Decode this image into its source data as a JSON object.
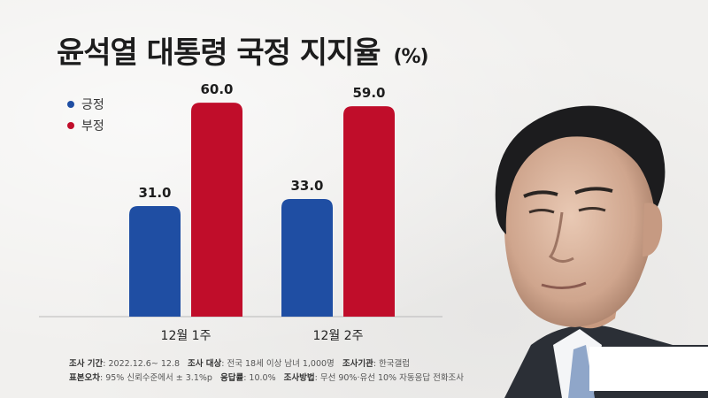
{
  "title": "윤석열 대통령 국정 지지율",
  "title_unit": "(%)",
  "colors": {
    "positive": "#1f4ea3",
    "negative": "#c00d2a"
  },
  "chart_data": {
    "type": "bar",
    "categories": [
      "12월 1주",
      "12월 2주"
    ],
    "series": [
      {
        "name": "긍정",
        "values": [
          31.0,
          33.0
        ]
      },
      {
        "name": "부정",
        "values": [
          60.0,
          59.0
        ]
      }
    ],
    "value_labels": [
      [
        "31.0",
        "33.0"
      ],
      [
        "60.0",
        "59.0"
      ]
    ],
    "ylim": [
      0,
      64
    ],
    "grid": false,
    "legend": "top-left"
  },
  "footer": {
    "line1": [
      {
        "label": "조사 기간",
        "value": ": 2022.12.6~ 12.8"
      },
      {
        "label": "조사 대상",
        "value": ": 전국 18세 이상 남녀 1,000명"
      },
      {
        "label": "조사기관",
        "value": ": 한국갤럽"
      }
    ],
    "line2": [
      {
        "label": "표본오차",
        "value": ": 95% 신뢰수준에서 ± 3.1%p"
      },
      {
        "label": "응답률",
        "value": ": 10.0%"
      },
      {
        "label": "조사방법",
        "value": ": 무선 90%·유선 10% 자동응답 전화조사"
      }
    ]
  }
}
